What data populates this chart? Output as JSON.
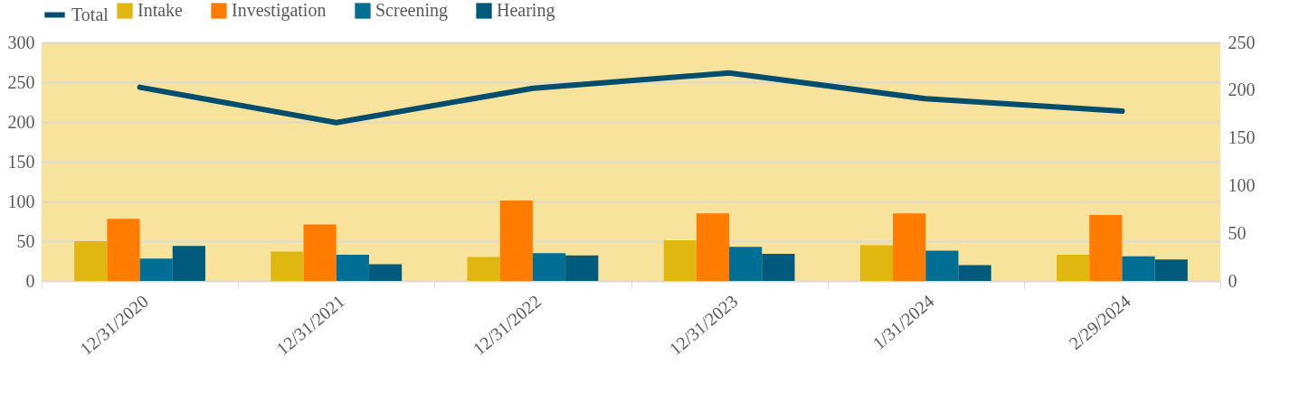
{
  "chart_data": {
    "type": "bar",
    "categories": [
      "12/31/2020",
      "12/31/2021",
      "12/31/2022",
      "12/31/2023",
      "1/31/2024",
      "2/29/2024"
    ],
    "series": [
      {
        "name": "Intake",
        "color": "#e0b611",
        "values": [
          50,
          37,
          30,
          51,
          45,
          33
        ]
      },
      {
        "name": "Investigation",
        "color": "#ff7c00",
        "values": [
          78,
          71,
          101,
          85,
          85,
          83
        ]
      },
      {
        "name": "Screening",
        "color": "#006f93",
        "values": [
          28,
          33,
          35,
          43,
          38,
          31
        ]
      },
      {
        "name": "Hearing",
        "color": "#005a7c",
        "values": [
          44,
          21,
          32,
          34,
          20,
          27
        ]
      },
      {
        "name": "Total",
        "color": "#004d6e",
        "type": "line",
        "axis": "y2",
        "values": [
          203,
          166,
          202,
          218,
          191,
          178
        ]
      }
    ],
    "ylim": [
      0,
      300
    ],
    "yticks": [
      0,
      50,
      100,
      150,
      200,
      250,
      300
    ],
    "y2lim": [
      0,
      250
    ],
    "y2ticks": [
      0,
      50,
      100,
      150,
      200,
      250
    ],
    "grid": "y",
    "legend": "top"
  }
}
